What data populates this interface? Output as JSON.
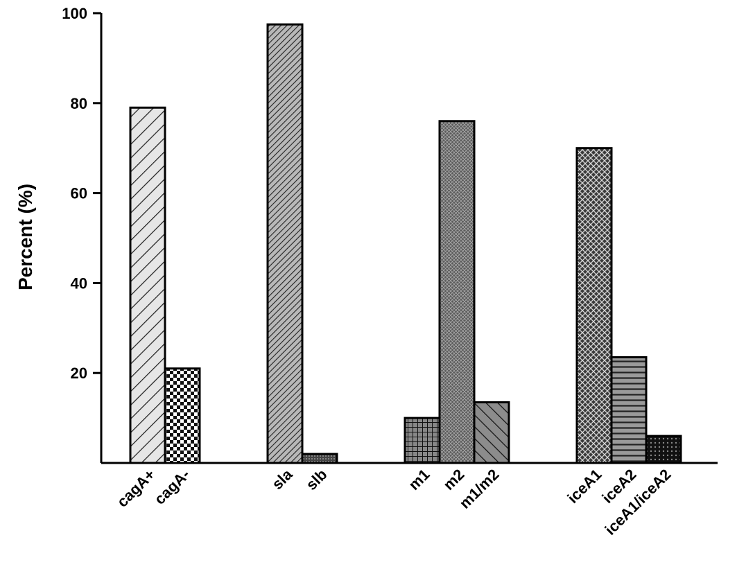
{
  "chart_data": {
    "type": "bar",
    "title": "",
    "xlabel": "",
    "ylabel": "Percent (%)",
    "ylim": [
      0,
      100
    ],
    "yticks": [
      20,
      40,
      60,
      80,
      100
    ],
    "grid": false,
    "legend": "none",
    "categories": [
      "cagA+",
      "cagA-",
      "sla",
      "slb",
      "m1",
      "m2",
      "m1/m2",
      "iceA1",
      "iceA2",
      "iceA1/iceA2"
    ],
    "groups": [
      {
        "categories": [
          "cagA+",
          "cagA-"
        ],
        "values": [
          79,
          21
        ]
      },
      {
        "categories": [
          "sla",
          "slb"
        ],
        "values": [
          97.5,
          2
        ]
      },
      {
        "categories": [
          "m1",
          "m2",
          "m1/m2"
        ],
        "values": [
          10,
          76,
          13.5
        ]
      },
      {
        "categories": [
          "iceA1",
          "iceA2",
          "iceA1/iceA2"
        ],
        "values": [
          70,
          23.5,
          6
        ]
      }
    ],
    "values": [
      79,
      21,
      97.5,
      2,
      10,
      76,
      13.5,
      70,
      23.5,
      6
    ],
    "patterns": [
      "diag-light",
      "checker",
      "diag-dense",
      "dots-dark",
      "grid-small",
      "crosshatch-fine",
      "diag-back",
      "crosshatch-coarse",
      "horizontal-lines",
      "dots-black"
    ]
  }
}
